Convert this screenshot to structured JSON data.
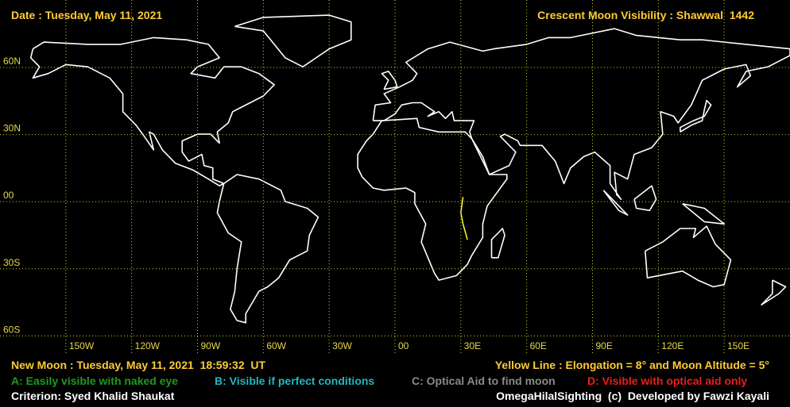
{
  "header": {
    "date": "Date : Tuesday, May 11, 2021",
    "title": "Crescent Moon Visibility : Shawwal  1442"
  },
  "map": {
    "latitudes": [
      "60N",
      "30N",
      "00",
      "30S",
      "60S"
    ],
    "longitudes": [
      "150W",
      "120W",
      "90W",
      "60W",
      "30W",
      "00",
      "30E",
      "60E",
      "90E",
      "120E",
      "150E"
    ]
  },
  "footer": {
    "new_moon": "New Moon : Tuesday, May 11, 2021  18:59:32  UT",
    "yellow_line": "Yellow Line : Elongation = 8° and Moon Altitude = 5°",
    "legend": [
      "A: Easily visible with naked eye",
      "B: Visible if perfect conditions",
      "C: Optical Aid to find moon",
      "D: Visible with optical aid only"
    ],
    "criterion": "Criterion: Syed Khalid Shaukat",
    "credit": "OmegaHilalSighting  (c)  Developed by Fawzi Kayali"
  }
}
